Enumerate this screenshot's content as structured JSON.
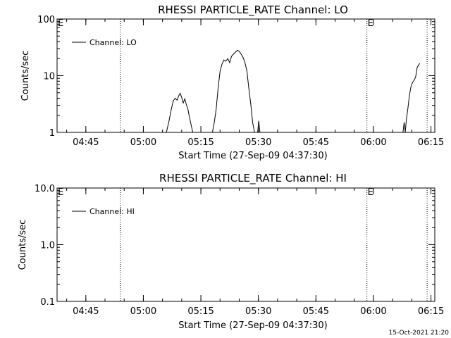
{
  "footer": {
    "timestamp": "15-Oct-2021 21:20"
  },
  "chart_data": [
    {
      "type": "line",
      "title": "RHESSI PARTICLE_RATE Channel: LO",
      "xlabel": "Start Time (27-Sep-09 04:37:30)",
      "ylabel": "Counts/sec",
      "yscale": "log",
      "ylim": [
        1,
        100
      ],
      "ytick_values": [
        1,
        10,
        100
      ],
      "ytick_labels": [
        "1",
        "10",
        "100"
      ],
      "xlim_minutes": [
        0,
        98.5
      ],
      "xtick_labels": [
        "04:45",
        "05:00",
        "05:15",
        "05:30",
        "05:45",
        "06:00",
        "06:15"
      ],
      "xtick_minutes": [
        7.5,
        22.5,
        37.5,
        52.5,
        67.5,
        82.5,
        97.5
      ],
      "legend": {
        "position": "top-left",
        "label": "Channel: LO"
      },
      "markers": [
        {
          "minute": 16.5,
          "label": ""
        },
        {
          "minute": 80.8,
          "label": "E"
        },
        {
          "minute": 96.5,
          "label": ""
        }
      ],
      "corner_label": "E",
      "series": [
        {
          "name": "Channel: LO",
          "segments": [
            [
              [
                28.5,
                1.0
              ],
              [
                29.2,
                1.6
              ],
              [
                29.8,
                2.6
              ],
              [
                30.3,
                3.6
              ],
              [
                30.8,
                4.0
              ],
              [
                31.3,
                3.7
              ],
              [
                31.7,
                4.4
              ],
              [
                32.1,
                4.9
              ],
              [
                32.5,
                4.1
              ],
              [
                32.9,
                3.3
              ],
              [
                33.3,
                3.9
              ],
              [
                33.7,
                3.1
              ],
              [
                34.1,
                2.6
              ],
              [
                34.5,
                1.9
              ],
              [
                35.0,
                1.3
              ],
              [
                35.4,
                1.0
              ]
            ],
            [
              [
                40.5,
                1.0
              ],
              [
                41.0,
                1.5
              ],
              [
                41.5,
                2.6
              ],
              [
                42.0,
                6.0
              ],
              [
                42.5,
                12.0
              ],
              [
                43.0,
                16.0
              ],
              [
                43.5,
                19.0
              ],
              [
                44.0,
                18.0
              ],
              [
                44.5,
                20.0
              ],
              [
                45.0,
                17.0
              ],
              [
                45.5,
                22.0
              ],
              [
                46.0,
                24.0
              ],
              [
                46.5,
                26.0
              ],
              [
                47.0,
                28.0
              ],
              [
                47.5,
                27.0
              ],
              [
                48.0,
                24.0
              ],
              [
                48.5,
                21.0
              ],
              [
                49.0,
                17.0
              ],
              [
                49.5,
                12.0
              ],
              [
                50.0,
                6.0
              ],
              [
                50.5,
                3.2
              ],
              [
                51.0,
                1.5
              ],
              [
                51.5,
                1.0
              ]
            ],
            [
              [
                52.3,
                1.0
              ],
              [
                52.6,
                1.6
              ],
              [
                52.9,
                1.0
              ]
            ],
            [
              [
                90.2,
                1.0
              ],
              [
                90.5,
                1.5
              ],
              [
                90.8,
                1.0
              ],
              [
                91.1,
                1.7
              ],
              [
                91.5,
                2.7
              ],
              [
                91.9,
                4.6
              ],
              [
                92.3,
                6.5
              ],
              [
                92.7,
                7.6
              ],
              [
                93.1,
                8.3
              ],
              [
                93.5,
                9.5
              ],
              [
                93.9,
                14.0
              ],
              [
                94.3,
                15.5
              ],
              [
                94.6,
                16.5
              ]
            ]
          ]
        }
      ]
    },
    {
      "type": "line",
      "title": "RHESSI PARTICLE_RATE Channel: HI",
      "xlabel": "Start Time (27-Sep-09 04:37:30)",
      "ylabel": "Counts/sec",
      "yscale": "log",
      "ylim": [
        0.1,
        10
      ],
      "ytick_values": [
        0.1,
        1.0,
        10.0
      ],
      "ytick_labels": [
        "0.1",
        "1.0",
        "10.0"
      ],
      "xlim_minutes": [
        0,
        98.5
      ],
      "xtick_labels": [
        "04:45",
        "05:00",
        "05:15",
        "05:30",
        "05:45",
        "06:00",
        "06:15"
      ],
      "xtick_minutes": [
        7.5,
        22.5,
        37.5,
        52.5,
        67.5,
        82.5,
        97.5
      ],
      "legend": {
        "position": "top-left",
        "label": "Channel: HI"
      },
      "markers": [
        {
          "minute": 16.5,
          "label": ""
        },
        {
          "minute": 80.8,
          "label": "E"
        },
        {
          "minute": 96.5,
          "label": ""
        }
      ],
      "corner_label": "E",
      "series": [
        {
          "name": "Channel: HI",
          "segments": []
        }
      ]
    }
  ]
}
